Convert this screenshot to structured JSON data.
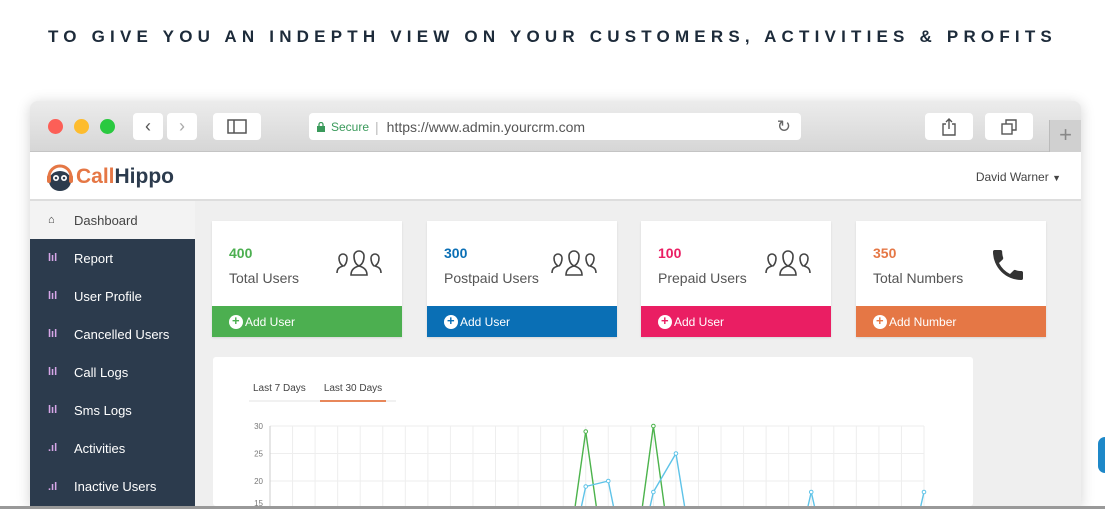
{
  "tagline": "TO GIVE YOU AN INDEPTH VIEW ON YOUR CUSTOMERS, ACTIVITIES & PROFITS",
  "browser": {
    "secure_label": "Secure",
    "url": "https://www.admin.yourcrm.com"
  },
  "app": {
    "logo_call": "Call",
    "logo_hippo": "Hippo",
    "user": "David Warner"
  },
  "sidebar": {
    "items": [
      {
        "label": "Dashboard",
        "icon": "home-icon"
      },
      {
        "label": "Report",
        "icon": "bar-chart-icon"
      },
      {
        "label": "User Profile",
        "icon": "bar-chart-icon"
      },
      {
        "label": "Cancelled Users",
        "icon": "bar-chart-icon"
      },
      {
        "label": "Call Logs",
        "icon": "bar-chart-icon"
      },
      {
        "label": "Sms Logs",
        "icon": "bar-chart-icon"
      },
      {
        "label": "Activities",
        "icon": "signal-icon"
      },
      {
        "label": "Inactive Users",
        "icon": "signal-icon"
      }
    ]
  },
  "cards": [
    {
      "value": "400",
      "label": "Total Users",
      "action": "Add User",
      "color": "#4caf50",
      "icon": "users-icon"
    },
    {
      "value": "300",
      "label": "Postpaid Users",
      "action": "Add User",
      "color": "#0a6fb5",
      "icon": "users-icon"
    },
    {
      "value": "100",
      "label": "Prepaid Users",
      "action": "Add User",
      "color": "#ea1e63",
      "icon": "users-icon"
    },
    {
      "value": "350",
      "label": "Total Numbers",
      "action": "Add Number",
      "color": "#e57745",
      "icon": "phone-icon"
    }
  ],
  "chart_tabs": [
    "Last 7 Days",
    "Last 30 Days"
  ],
  "chart_data": {
    "type": "line",
    "yticks": [
      30,
      25,
      20,
      15
    ],
    "ylim": [
      0,
      30
    ],
    "grid": true,
    "series": [
      {
        "color": "#4cb34c",
        "values": [
          0,
          0,
          0,
          0,
          0,
          0,
          0,
          0,
          0,
          0,
          0,
          0,
          0,
          0,
          29,
          0,
          0,
          30,
          0,
          0,
          0,
          0,
          0,
          0,
          0,
          0,
          0,
          0,
          0,
          0
        ]
      },
      {
        "color": "#5ec3e8",
        "values": [
          0,
          0,
          0,
          0,
          0,
          0,
          0,
          0,
          0,
          0,
          0,
          0,
          0,
          0,
          19,
          20,
          0,
          18,
          25,
          0,
          0,
          0,
          0,
          0,
          18,
          0,
          0,
          0,
          0,
          18
        ]
      }
    ]
  }
}
